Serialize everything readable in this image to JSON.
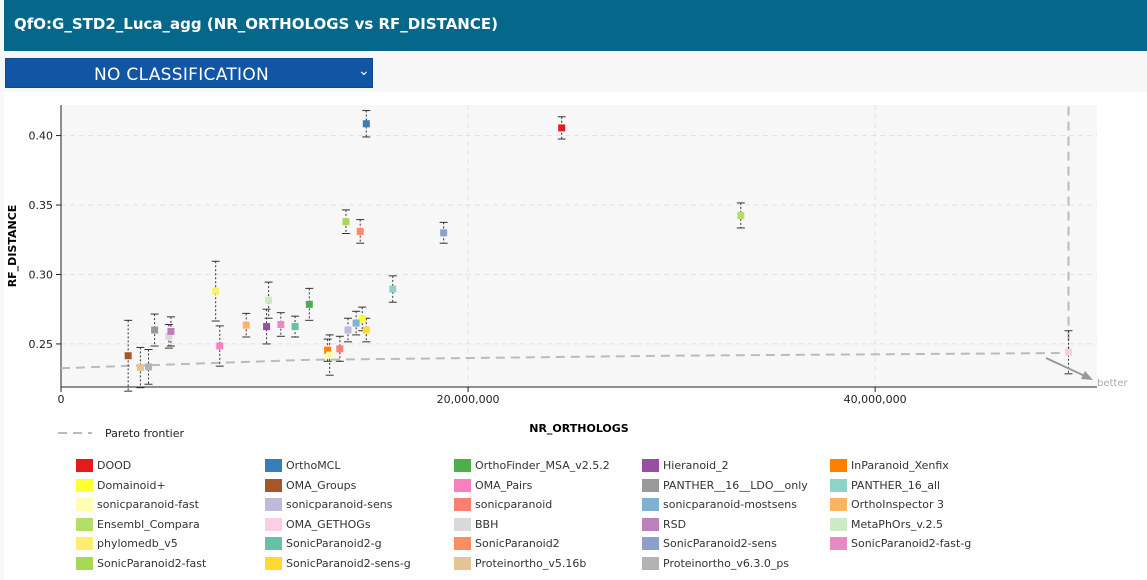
{
  "header": {
    "title": "QfO:G_STD2_Luca_agg (NR_ORTHOLOGS vs RF_DISTANCE)"
  },
  "classification": {
    "selected": "NO CLASSIFICATION"
  },
  "pareto_label": "Pareto frontier",
  "better_label": "better",
  "chart_data": {
    "type": "scatter",
    "xlabel": "NR_ORTHOLOGS",
    "ylabel": "RF_DISTANCE",
    "xlim": [
      0,
      50900000
    ],
    "ylim": [
      0.219,
      0.422
    ],
    "x_ticks": [
      0,
      20000000,
      40000000
    ],
    "x_tick_labels": [
      "0",
      "20,000,000",
      "40,000,000"
    ],
    "y_ticks": [
      0.25,
      0.3,
      0.35,
      0.4
    ],
    "y_tick_labels": [
      "0.25",
      "0.30",
      "0.35",
      "0.40"
    ],
    "grid": true,
    "legend_position": "bottom",
    "pareto_frontier": [
      [
        0,
        0.2325
      ],
      [
        12000000,
        0.2385
      ],
      [
        30000000,
        0.2415
      ],
      [
        49500000,
        0.2435
      ],
      [
        49500000,
        0.422
      ]
    ],
    "series": [
      {
        "name": "DOOD",
        "color": "#e41a1c",
        "x": 24600000,
        "y": 0.4055,
        "err": 0.008
      },
      {
        "name": "OrthoMCL",
        "color": "#377eb8",
        "x": 15000000,
        "y": 0.4085,
        "err": 0.0095
      },
      {
        "name": "OrthoFinder_MSA_v2.5.2",
        "color": "#4daf4a",
        "x": 12200000,
        "y": 0.2785,
        "err": 0.0115
      },
      {
        "name": "Hieranoid_2",
        "color": "#984ea3",
        "x": 10100000,
        "y": 0.2625,
        "err": 0.0125
      },
      {
        "name": "InParanoid_Xenfix",
        "color": "#ff7f00",
        "x": 13100000,
        "y": 0.2455,
        "err": 0.008
      },
      {
        "name": "Domainoid+",
        "color": "#ffff33",
        "x": 14800000,
        "y": 0.268,
        "err": 0.0085
      },
      {
        "name": "OMA_Groups",
        "color": "#a65628",
        "x": 3300000,
        "y": 0.2415,
        "err": 0.0255
      },
      {
        "name": "OMA_Pairs",
        "color": "#f781bf",
        "x": 7800000,
        "y": 0.2485,
        "err": 0.0145
      },
      {
        "name": "PANTHER__16__LDO__only",
        "color": "#999999",
        "x": 4600000,
        "y": 0.26,
        "err": 0.0115
      },
      {
        "name": "PANTHER_16_all",
        "color": "#8dd3c7",
        "x": 16300000,
        "y": 0.2895,
        "err": 0.0095
      },
      {
        "name": "sonicparanoid-fast",
        "color": "#ffffb3",
        "x": 13200000,
        "y": 0.242,
        "err": 0.0145
      },
      {
        "name": "sonicparanoid-sens",
        "color": "#bebada",
        "x": 14100000,
        "y": 0.26,
        "err": 0.0085
      },
      {
        "name": "sonicparanoid",
        "color": "#fb8072",
        "x": 13700000,
        "y": 0.2465,
        "err": 0.009
      },
      {
        "name": "sonicparanoid-mostsens",
        "color": "#80b1d3",
        "x": 14500000,
        "y": 0.265,
        "err": 0.0085
      },
      {
        "name": "OrthoInspector 3",
        "color": "#fdb462",
        "x": 9100000,
        "y": 0.2635,
        "err": 0.0085
      },
      {
        "name": "Ensembl_Compara",
        "color": "#b3de69",
        "x": 33400000,
        "y": 0.3425,
        "err": 0.009
      },
      {
        "name": "OMA_GETHOGs",
        "color": "#fccde5",
        "x": 49500000,
        "y": 0.244,
        "err": 0.0155
      },
      {
        "name": "BBH",
        "color": "#d9d9d9",
        "x": 5300000,
        "y": 0.2555,
        "err": 0.0085
      },
      {
        "name": "RSD",
        "color": "#bc80bd",
        "x": 5400000,
        "y": 0.259,
        "err": 0.0105
      },
      {
        "name": "MetaPhOrs_v.2.5",
        "color": "#ccebc5",
        "x": 10200000,
        "y": 0.2815,
        "err": 0.013
      },
      {
        "name": "phylomedb_v5",
        "color": "#ffed6f",
        "x": 7600000,
        "y": 0.288,
        "err": 0.0215
      },
      {
        "name": "SonicParanoid2-g",
        "color": "#66c2a5",
        "x": 11500000,
        "y": 0.2625,
        "err": 0.0075
      },
      {
        "name": "SonicParanoid2",
        "color": "#fc8d62",
        "x": 14700000,
        "y": 0.331,
        "err": 0.0085
      },
      {
        "name": "SonicParanoid2-sens",
        "color": "#8da0cb",
        "x": 18800000,
        "y": 0.33,
        "err": 0.0075
      },
      {
        "name": "SonicParanoid2-fast-g",
        "color": "#e78ac3",
        "x": 10800000,
        "y": 0.264,
        "err": 0.0085
      },
      {
        "name": "SonicParanoid2-fast",
        "color": "#a6d854",
        "x": 14000000,
        "y": 0.338,
        "err": 0.0085
      },
      {
        "name": "SonicParanoid2-sens-g",
        "color": "#ffd92f",
        "x": 15000000,
        "y": 0.26,
        "err": 0.0085
      },
      {
        "name": "Proteinortho_v5.16b",
        "color": "#e5c494",
        "x": 3900000,
        "y": 0.233,
        "err": 0.0145
      },
      {
        "name": "Proteinortho_v6.3.0_ps",
        "color": "#b3b3b3",
        "x": 4300000,
        "y": 0.2335,
        "err": 0.0125
      }
    ]
  }
}
